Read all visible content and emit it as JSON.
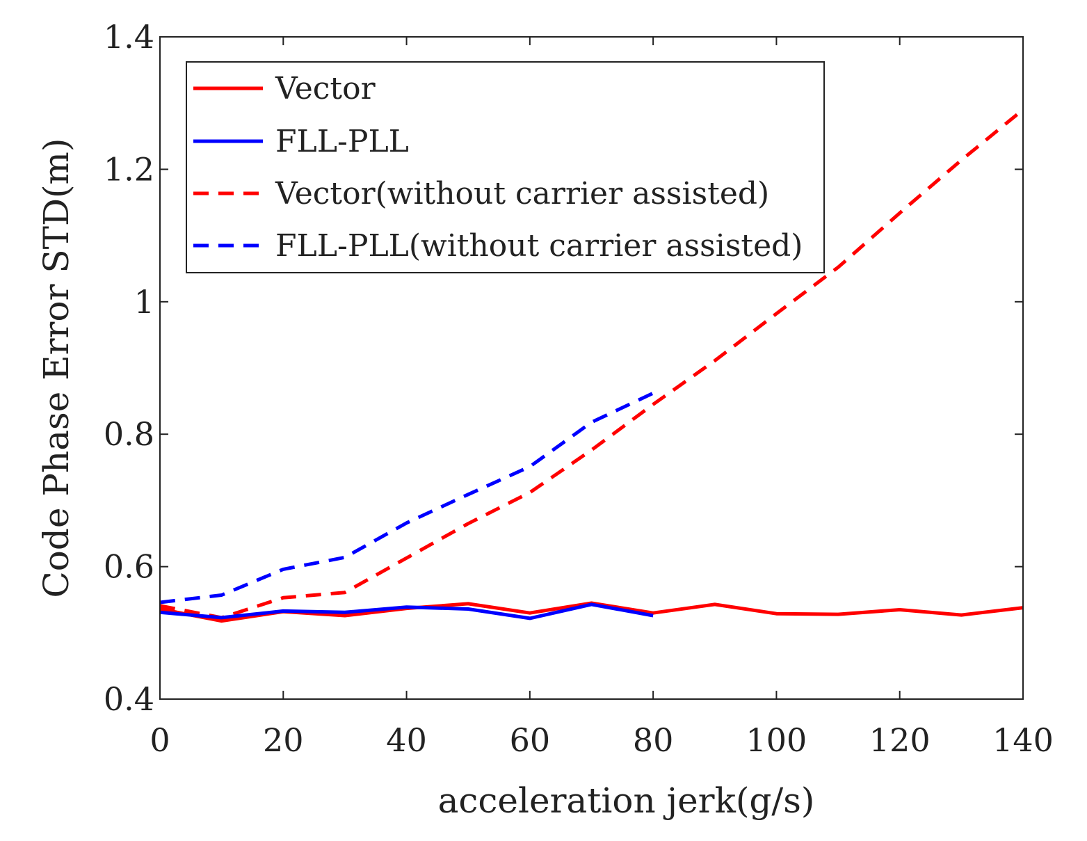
{
  "chart_data": {
    "type": "line",
    "title": "",
    "xlabel": "acceleration jerk(g/s)",
    "ylabel": "Code Phase Error STD(m)",
    "xlim": [
      0,
      140
    ],
    "ylim": [
      0.4,
      1.4
    ],
    "xticks": [
      0,
      20,
      40,
      60,
      80,
      100,
      120,
      140
    ],
    "xtick_labels": [
      "0",
      "20",
      "40",
      "60",
      "80",
      "100",
      "120",
      "140"
    ],
    "yticks": [
      0.4,
      0.6,
      0.8,
      1.0,
      1.2,
      1.4
    ],
    "ytick_labels": [
      "0.4",
      "0.6",
      "0.8",
      "1",
      "1.2",
      "1.4"
    ],
    "grid": false,
    "legend_position": "top-left",
    "series": [
      {
        "name": "Vector",
        "color": "#ff0000",
        "style": "solid",
        "x": [
          0,
          10,
          20,
          30,
          40,
          50,
          60,
          70,
          80,
          90,
          100,
          110,
          120,
          130,
          140
        ],
        "values": [
          0.536,
          0.518,
          0.532,
          0.526,
          0.537,
          0.544,
          0.53,
          0.545,
          0.53,
          0.543,
          0.529,
          0.528,
          0.535,
          0.527,
          0.538
        ]
      },
      {
        "name": "FLL-PLL",
        "color": "#0000ff",
        "style": "solid",
        "x": [
          0,
          10,
          20,
          30,
          40,
          50,
          60,
          70,
          80
        ],
        "values": [
          0.531,
          0.523,
          0.533,
          0.531,
          0.539,
          0.536,
          0.522,
          0.543,
          0.526
        ]
      },
      {
        "name": "Vector(without carrier assisted)",
        "color": "#ff0000",
        "style": "dashed",
        "x": [
          0,
          10,
          20,
          30,
          40,
          50,
          60,
          70,
          80,
          90,
          100,
          110,
          120,
          130,
          140
        ],
        "values": [
          0.541,
          0.523,
          0.553,
          0.561,
          0.613,
          0.665,
          0.712,
          0.776,
          0.845,
          0.911,
          0.982,
          1.052,
          1.134,
          1.214,
          1.29
        ]
      },
      {
        "name": "FLL-PLL(without carrier assisted)",
        "color": "#0000ff",
        "style": "dashed",
        "x": [
          0,
          10,
          20,
          30,
          40,
          50,
          60,
          70,
          80
        ],
        "values": [
          0.546,
          0.557,
          0.596,
          0.614,
          0.666,
          0.709,
          0.751,
          0.818,
          0.862
        ]
      }
    ]
  }
}
